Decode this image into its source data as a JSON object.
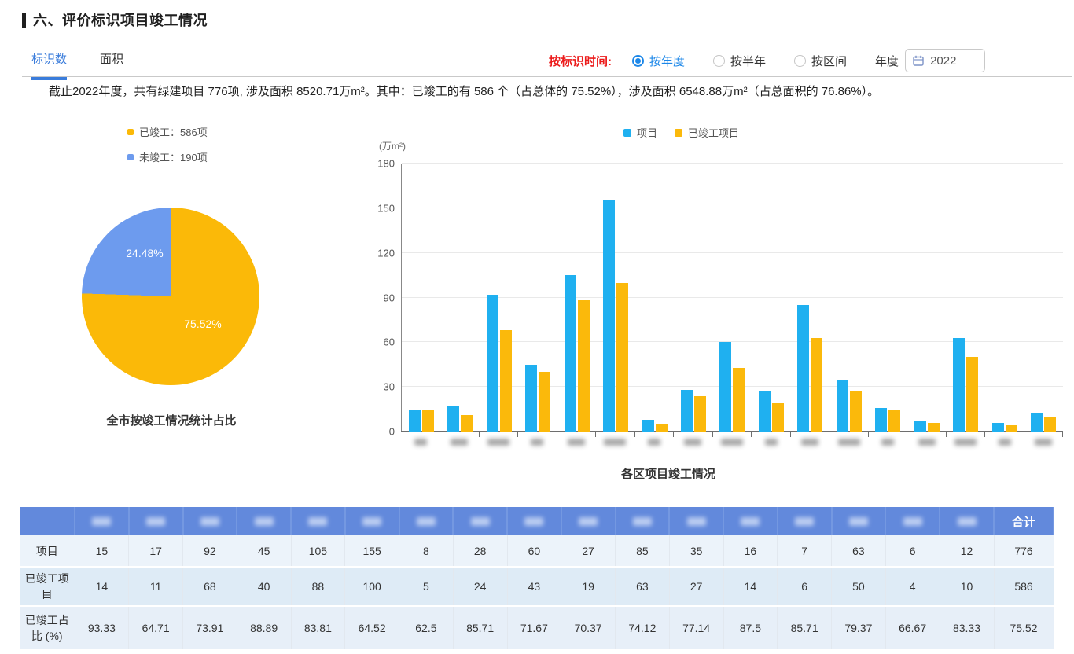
{
  "page": {
    "title": "六、评价标识项目竣工情况"
  },
  "tabs": [
    {
      "label": "标识数",
      "active": true
    },
    {
      "label": "面积",
      "active": false
    }
  ],
  "filters": {
    "label": "按标识时间:",
    "options": [
      {
        "label": "按年度",
        "selected": true
      },
      {
        "label": "按半年",
        "selected": false
      },
      {
        "label": "按区间",
        "selected": false
      }
    ],
    "year_label": "年度",
    "year_value": "2022"
  },
  "summary": "截止2022年度，共有绿建项目 776项, 涉及面积 8520.71万m²。其中：已竣工的有 586 个（占总体的 75.52%），涉及面积 6548.88万m²（占总面积的 76.86%）。",
  "colors": {
    "accent_blue": "#3a7cdb",
    "radio_blue": "#1c87e8",
    "red_label": "#ec1b1b",
    "bar_blue": "#1fb0f0",
    "bar_yellow": "#fbb90b",
    "pie_yellow": "#fbb908",
    "pie_blue": "#6d9bee",
    "table_header": "#6289dc"
  },
  "chart_data": [
    {
      "type": "pie",
      "title": "全市按竣工情况统计占比",
      "legend": [
        {
          "label": "已竣工：586项",
          "color": "#fbb908"
        },
        {
          "label": "未竣工：190项",
          "color": "#6d9bee"
        }
      ],
      "slices": [
        {
          "label": "已竣工",
          "value": 586,
          "percent": 75.52,
          "percent_label": "75.52%",
          "color": "#fbb908"
        },
        {
          "label": "未竣工",
          "value": 190,
          "percent": 24.48,
          "percent_label": "24.48%",
          "color": "#6d9bee"
        }
      ]
    },
    {
      "type": "bar",
      "title": "各区项目竣工情况",
      "unit": "(万m²)",
      "ylim": [
        0,
        180
      ],
      "yticks": [
        0,
        30,
        60,
        90,
        120,
        150,
        180
      ],
      "grid": true,
      "legend_position": "top",
      "categories_blurred": true,
      "num_categories": 17,
      "series": [
        {
          "name": "项目",
          "color": "#1fb0f0",
          "values": [
            15,
            17,
            92,
            45,
            105,
            155,
            8,
            28,
            60,
            27,
            85,
            35,
            16,
            7,
            63,
            6,
            12
          ]
        },
        {
          "name": "已竣工项目",
          "color": "#fbb90b",
          "values": [
            14,
            11,
            68,
            40,
            88,
            100,
            5,
            24,
            43,
            19,
            63,
            27,
            14,
            6,
            50,
            4,
            10
          ]
        }
      ]
    }
  ],
  "table": {
    "corner": "",
    "blurred_columns": 17,
    "total_header": "合计",
    "rows": [
      {
        "label": "项目",
        "values": [
          "15",
          "17",
          "92",
          "45",
          "105",
          "155",
          "8",
          "28",
          "60",
          "27",
          "85",
          "35",
          "16",
          "7",
          "63",
          "6",
          "12"
        ],
        "total": "776"
      },
      {
        "label": "已竣工项目",
        "values": [
          "14",
          "11",
          "68",
          "40",
          "88",
          "100",
          "5",
          "24",
          "43",
          "19",
          "63",
          "27",
          "14",
          "6",
          "50",
          "4",
          "10"
        ],
        "total": "586"
      },
      {
        "label": "已竣工占比 (%)",
        "values": [
          "93.33",
          "64.71",
          "73.91",
          "88.89",
          "83.81",
          "64.52",
          "62.5",
          "85.71",
          "71.67",
          "70.37",
          "74.12",
          "77.14",
          "87.5",
          "85.71",
          "79.37",
          "66.67",
          "83.33"
        ],
        "total": "75.52"
      }
    ]
  }
}
